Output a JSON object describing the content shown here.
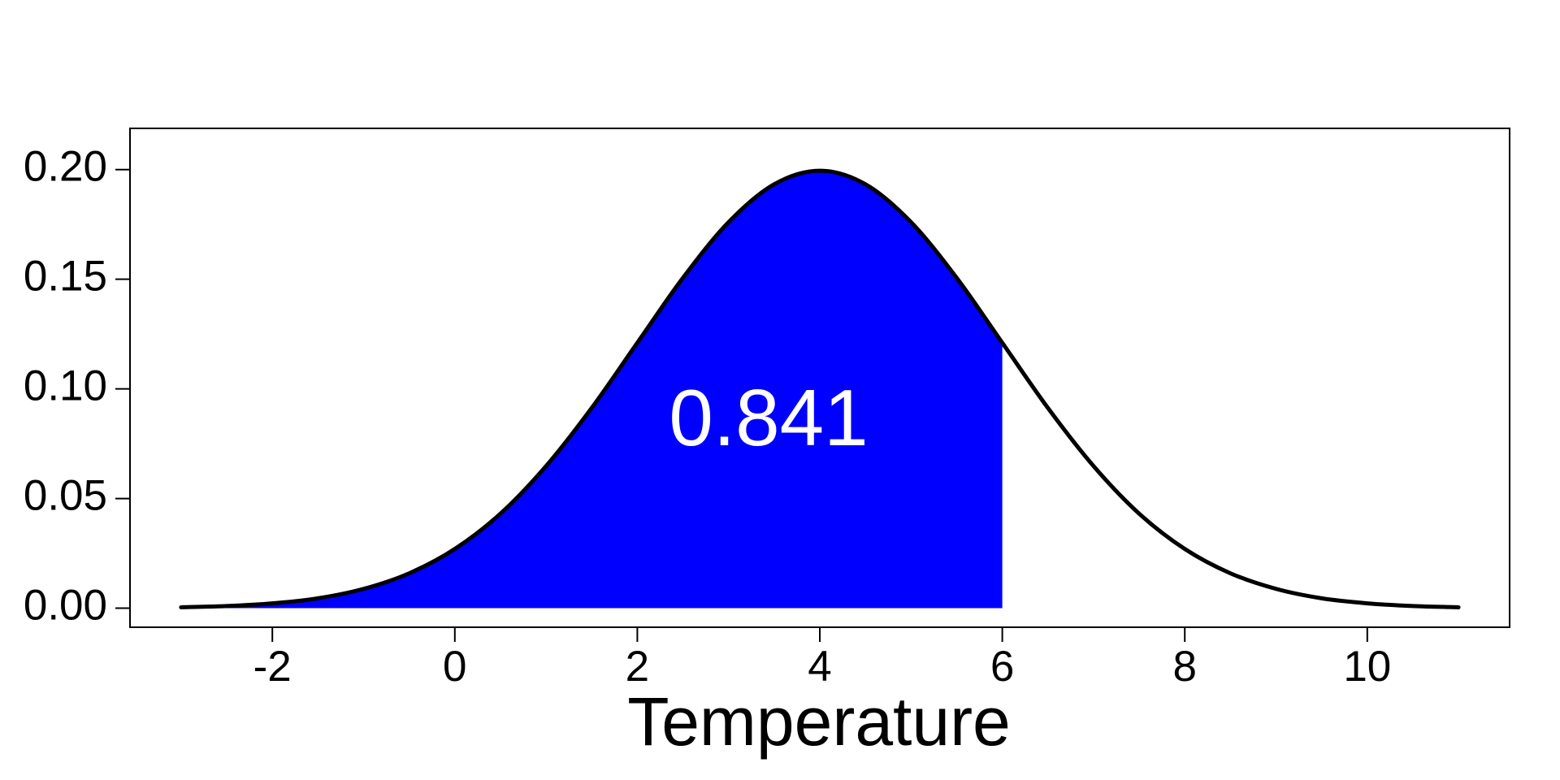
{
  "chart_data": {
    "type": "density",
    "x_label": "Temperature",
    "x": [
      -3,
      -2.5,
      -2,
      -1.5,
      -1,
      -0.5,
      0,
      0.5,
      1,
      1.5,
      2,
      2.5,
      3,
      3.5,
      4,
      4.5,
      5,
      5.5,
      6,
      6.5,
      7,
      7.5,
      8,
      8.5,
      9,
      9.5,
      10,
      10.5,
      11
    ],
    "values": [
      0.0004,
      0.001,
      0.0022,
      0.0045,
      0.0088,
      0.0159,
      0.027,
      0.0431,
      0.0648,
      0.0913,
      0.121,
      0.1506,
      0.176,
      0.1933,
      0.1995,
      0.1933,
      0.176,
      0.1506,
      0.121,
      0.0913,
      0.0648,
      0.0431,
      0.027,
      0.0159,
      0.0088,
      0.0045,
      0.0022,
      0.001,
      0.0004
    ],
    "line_color": "#000000",
    "area": {
      "x_to": 6,
      "color": "#0000ff",
      "annotation": 0.841,
      "annotation_color": "#ffffff"
    },
    "xlim": [
      -3.56,
      11.56
    ],
    "xticks": [
      -2,
      0,
      2,
      4,
      6,
      8,
      10
    ],
    "ylim": [
      -0.0087,
      0.2188
    ],
    "yticks": [
      {
        "value": 0,
        "label": "0.00"
      },
      {
        "value": 0.05,
        "label": "0.05"
      },
      {
        "value": 0.1,
        "label": "0.10"
      },
      {
        "value": 0.15,
        "label": "0.15"
      },
      {
        "value": 0.2,
        "label": "0.20"
      }
    ],
    "grid": false
  }
}
